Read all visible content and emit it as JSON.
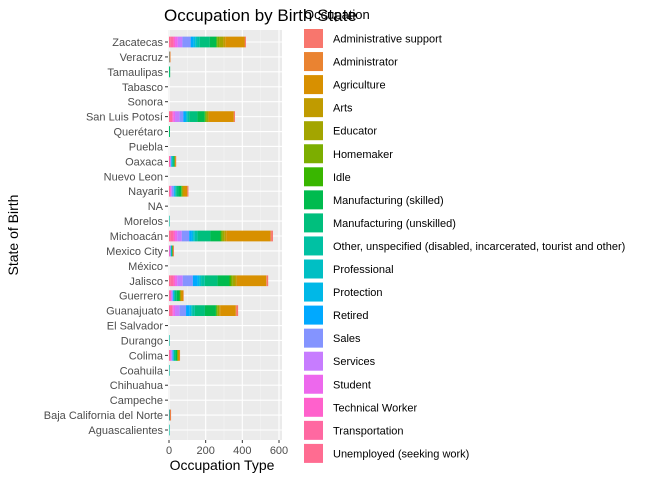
{
  "chart_data": {
    "type": "bar",
    "orientation": "horizontal",
    "stacked": true,
    "title": "Occupation by Birth State",
    "xlabel": "Occupation Type",
    "ylabel": "State of Birth",
    "legend_title": "Occupation",
    "legend_position": "right",
    "xlim": [
      0,
      600
    ],
    "x_ticks": [
      0,
      200,
      400,
      600
    ],
    "grid": true,
    "categories": [
      "Aguascalientes",
      "Baja California del Norte",
      "Campeche",
      "Chihuahua",
      "Coahuila",
      "Colima",
      "Durango",
      "El Salvador",
      "Guanajuato",
      "Guerrero",
      "Jalisco",
      "México",
      "Mexico City",
      "Michoacán",
      "Morelos",
      "NA",
      "Nayarit",
      "Nuevo Leon",
      "Oaxaca",
      "Puebla",
      "Querétaro",
      "San Luis Potosí",
      "Sonora",
      "Tabasco",
      "Tamaulipas",
      "Veracruz",
      "Zacatecas"
    ],
    "series": [
      {
        "name": "Administrative support",
        "color": "#F8766D",
        "values": [
          0,
          3,
          0,
          0,
          0,
          0,
          0,
          0,
          10,
          0,
          8,
          0,
          2,
          10,
          0,
          0,
          5,
          0,
          0,
          0,
          0,
          5,
          0,
          0,
          0,
          0,
          5
        ]
      },
      {
        "name": "Administrator",
        "color": "#EA8331",
        "values": [
          0,
          1,
          0,
          0,
          0,
          2,
          0,
          0,
          3,
          3,
          3,
          0,
          1,
          5,
          0,
          0,
          2,
          0,
          1,
          0,
          0,
          2,
          0,
          0,
          0,
          1,
          3
        ]
      },
      {
        "name": "Agriculture",
        "color": "#D89000",
        "values": [
          0,
          2,
          0,
          0,
          0,
          6,
          0,
          0,
          85,
          12,
          160,
          0,
          3,
          240,
          0,
          0,
          20,
          0,
          4,
          0,
          0,
          135,
          0,
          0,
          0,
          2,
          105
        ]
      },
      {
        "name": "Arts",
        "color": "#C09B00",
        "values": [
          0,
          0,
          0,
          0,
          0,
          2,
          0,
          0,
          5,
          2,
          10,
          0,
          0,
          8,
          0,
          0,
          3,
          0,
          0,
          0,
          0,
          5,
          0,
          0,
          0,
          0,
          12
        ]
      },
      {
        "name": "Educator",
        "color": "#A3A500",
        "values": [
          0,
          0,
          0,
          0,
          0,
          2,
          0,
          0,
          8,
          1,
          12,
          0,
          1,
          10,
          0,
          0,
          3,
          0,
          1,
          0,
          0,
          8,
          0,
          0,
          0,
          0,
          20
        ]
      },
      {
        "name": "Homemaker",
        "color": "#7CAE00",
        "values": [
          0,
          0,
          0,
          0,
          0,
          2,
          0,
          0,
          5,
          2,
          10,
          0,
          0,
          8,
          0,
          0,
          3,
          0,
          0,
          0,
          0,
          5,
          0,
          0,
          0,
          0,
          12
        ]
      },
      {
        "name": "Idle",
        "color": "#39B600",
        "values": [
          0,
          0,
          0,
          0,
          0,
          1,
          0,
          0,
          5,
          3,
          8,
          0,
          0,
          5,
          0,
          0,
          3,
          0,
          0,
          0,
          0,
          5,
          0,
          0,
          0,
          0,
          5
        ]
      },
      {
        "name": "Manufacturing (skilled)",
        "color": "#00BB4E",
        "values": [
          0,
          1,
          0,
          0,
          0,
          8,
          0,
          0,
          60,
          15,
          65,
          0,
          2,
          55,
          0,
          0,
          15,
          0,
          4,
          0,
          1,
          40,
          0,
          0,
          2,
          0,
          35
        ]
      },
      {
        "name": "Manufacturing (unskilled)",
        "color": "#00BF7D",
        "values": [
          0,
          1,
          0,
          0,
          0,
          6,
          0,
          0,
          55,
          10,
          70,
          0,
          2,
          70,
          0,
          0,
          12,
          0,
          6,
          0,
          1,
          45,
          0,
          0,
          2,
          0,
          55
        ]
      },
      {
        "name": "Other, unspecified (disabled, incarcerated, tourist and other)",
        "color": "#00C1A3",
        "values": [
          1,
          1,
          0,
          0,
          1,
          3,
          1,
          0,
          15,
          3,
          20,
          0,
          2,
          15,
          1,
          0,
          4,
          0,
          3,
          0,
          1,
          10,
          0,
          0,
          1,
          1,
          15
        ]
      },
      {
        "name": "Professional",
        "color": "#00BFC4",
        "values": [
          0,
          0,
          0,
          0,
          0,
          2,
          0,
          0,
          5,
          2,
          8,
          0,
          1,
          8,
          0,
          0,
          2,
          0,
          2,
          0,
          0,
          5,
          0,
          0,
          0,
          0,
          10
        ]
      },
      {
        "name": "Protection",
        "color": "#00B8E7",
        "values": [
          0,
          0,
          0,
          0,
          0,
          2,
          0,
          0,
          8,
          2,
          12,
          0,
          1,
          8,
          0,
          0,
          3,
          0,
          2,
          0,
          0,
          5,
          0,
          0,
          0,
          0,
          10
        ]
      },
      {
        "name": "Retired",
        "color": "#00A9FF",
        "values": [
          0,
          0,
          0,
          0,
          0,
          3,
          0,
          0,
          20,
          3,
          25,
          0,
          1,
          15,
          0,
          0,
          5,
          0,
          2,
          0,
          0,
          12,
          0,
          0,
          0,
          0,
          15
        ]
      },
      {
        "name": "Sales",
        "color": "#8494FF",
        "values": [
          0,
          1,
          0,
          0,
          0,
          5,
          0,
          0,
          35,
          5,
          55,
          0,
          3,
          40,
          0,
          0,
          10,
          0,
          3,
          0,
          0,
          20,
          0,
          0,
          0,
          1,
          45
        ]
      },
      {
        "name": "Services",
        "color": "#C77CFF",
        "values": [
          0,
          1,
          0,
          0,
          0,
          5,
          0,
          0,
          25,
          5,
          30,
          0,
          3,
          25,
          0,
          0,
          5,
          0,
          3,
          0,
          0,
          25,
          0,
          0,
          0,
          1,
          25
        ]
      },
      {
        "name": "Student",
        "color": "#ED68ED",
        "values": [
          0,
          0,
          0,
          0,
          0,
          2,
          0,
          0,
          10,
          2,
          12,
          0,
          1,
          12,
          0,
          0,
          3,
          0,
          1,
          0,
          0,
          10,
          0,
          0,
          0,
          0,
          15
        ]
      },
      {
        "name": "Technical Worker",
        "color": "#FF61CC",
        "values": [
          0,
          0,
          0,
          0,
          0,
          2,
          0,
          0,
          5,
          2,
          8,
          0,
          1,
          8,
          0,
          0,
          2,
          0,
          1,
          0,
          0,
          5,
          0,
          0,
          0,
          0,
          8
        ]
      },
      {
        "name": "Transportation",
        "color": "#FF68A1",
        "values": [
          0,
          0,
          0,
          0,
          0,
          3,
          0,
          0,
          10,
          5,
          15,
          0,
          1,
          15,
          0,
          0,
          3,
          0,
          2,
          0,
          0,
          10,
          0,
          0,
          0,
          0,
          15
        ]
      },
      {
        "name": "Unemployed (seeking work)",
        "color": "#FF6C91",
        "values": [
          0,
          0,
          0,
          0,
          0,
          3,
          0,
          0,
          8,
          3,
          10,
          0,
          1,
          10,
          0,
          0,
          3,
          0,
          2,
          0,
          0,
          8,
          0,
          0,
          0,
          0,
          10
        ]
      }
    ]
  }
}
